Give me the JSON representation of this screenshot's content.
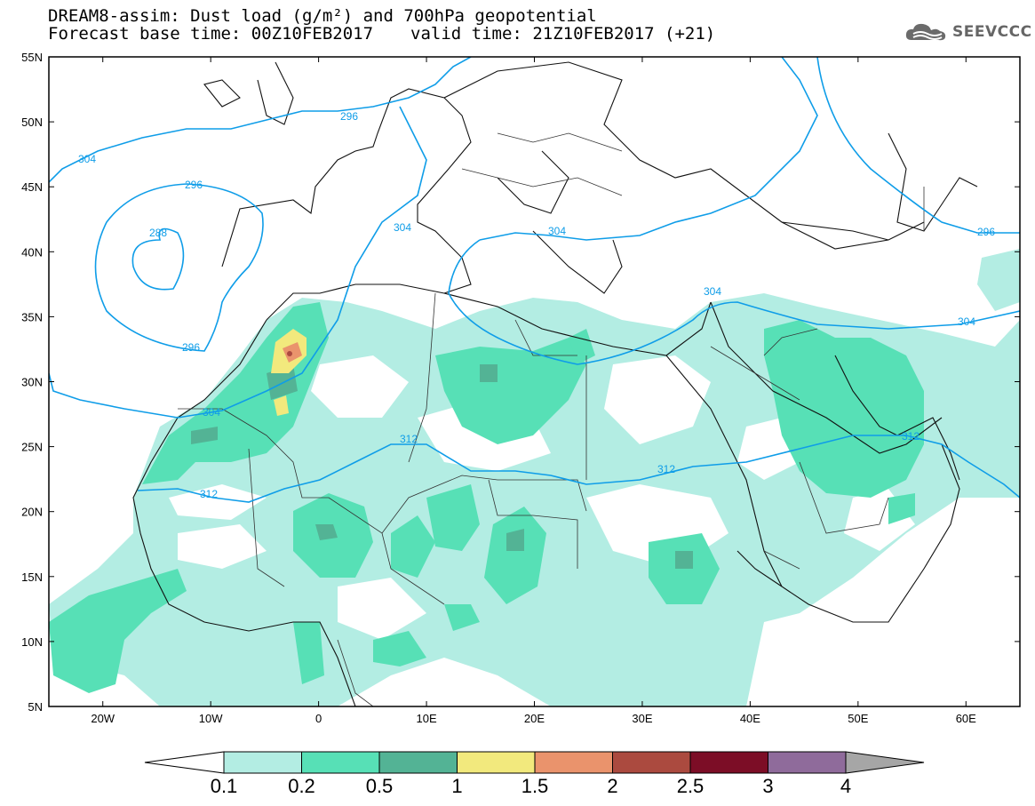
{
  "header": {
    "line1": "DREAM8-assim: Dust load (g/m²) and 700hPa geopotential",
    "base_time": "Forecast base time: 00Z10FEB2017",
    "valid_time": "valid time: 21Z10FEB2017 (+21)"
  },
  "logo": {
    "icon": "cloud-icon",
    "text": "SEEVCCC"
  },
  "map": {
    "lon_range": [
      -25,
      65
    ],
    "lat_range": [
      5,
      55
    ],
    "lat_ticks": [
      "55N",
      "50N",
      "45N",
      "40N",
      "35N",
      "30N",
      "25N",
      "20N",
      "15N",
      "10N",
      "5N"
    ],
    "lon_ticks": [
      "20W",
      "10W",
      "0",
      "10E",
      "20E",
      "30E",
      "40E",
      "50E",
      "60E"
    ],
    "contour_labels": [
      "288",
      "296",
      "296",
      "296",
      "296",
      "304",
      "304",
      "304",
      "304",
      "304",
      "304",
      "312",
      "312",
      "312",
      "312"
    ]
  },
  "colorbar": {
    "levels": [
      "0.1",
      "0.2",
      "0.5",
      "1",
      "1.5",
      "2",
      "2.5",
      "3",
      "4"
    ],
    "colors": [
      "#b3ede3",
      "#57e0b6",
      "#53b395",
      "#f2e97d",
      "#ea936c",
      "#ab4a3f",
      "#7c0d26",
      "#8f6b9b"
    ],
    "under_color": "#ffffff",
    "over_color": "#a6a6a6"
  }
}
